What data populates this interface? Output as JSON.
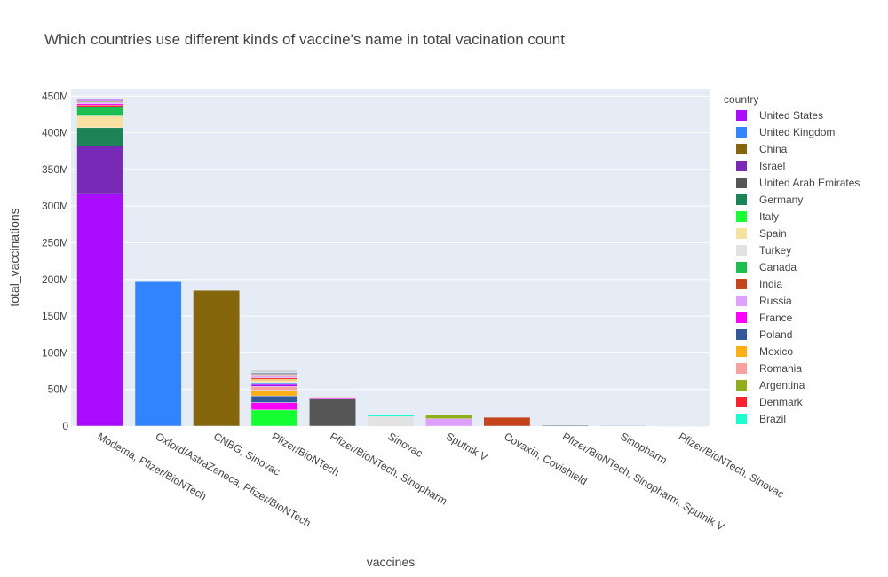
{
  "chart_data": {
    "type": "bar",
    "barmode": "stack",
    "title": "Which countries use different kinds of vaccine's name in total vacination count",
    "xlabel": "vaccines",
    "ylabel": "total_vaccinations",
    "ylim": [
      0,
      460000000
    ],
    "yticks": [
      0,
      50000000,
      100000000,
      150000000,
      200000000,
      250000000,
      300000000,
      350000000,
      400000000,
      450000000
    ],
    "ytick_labels": [
      "0",
      "50M",
      "100M",
      "150M",
      "200M",
      "250M",
      "300M",
      "350M",
      "400M",
      "450M"
    ],
    "grid": true,
    "plot_background": "#E5ECF6",
    "legend_title": "country",
    "legend_position": "right",
    "categories": [
      "Moderna, Pfizer/BioNTech",
      "Oxford/AstraZeneca, Pfizer/BioNTech",
      "CNBG, Sinovac",
      "Pfizer/BioNTech",
      "Pfizer/BioNTech, Sinopharm",
      "Sinovac",
      "Sputnik V",
      "Covaxin, Covishield",
      "Pfizer/BioNTech, Sinopharm, Sputnik V",
      "Sinopharm",
      "Pfizer/BioNTech, Sinovac"
    ],
    "series": [
      {
        "name": "United States",
        "color": "#AA0DFE",
        "values": [
          317000000,
          0,
          0,
          0,
          0,
          0,
          0,
          0,
          0,
          0,
          0
        ]
      },
      {
        "name": "United Kingdom",
        "color": "#3283FE",
        "values": [
          0,
          197000000,
          0,
          0,
          0,
          0,
          0,
          0,
          0,
          0,
          0
        ]
      },
      {
        "name": "China",
        "color": "#85660D",
        "values": [
          0,
          0,
          185000000,
          0,
          0,
          0,
          0,
          0,
          0,
          0,
          0
        ]
      },
      {
        "name": "Israel",
        "color": "#782AB6",
        "values": [
          65000000,
          0,
          0,
          0,
          0,
          0,
          0,
          0,
          0,
          0,
          0
        ]
      },
      {
        "name": "United Arab Emirates",
        "color": "#565656",
        "values": [
          0,
          0,
          0,
          0,
          37000000,
          0,
          0,
          0,
          0,
          0,
          0
        ]
      },
      {
        "name": "Germany",
        "color": "#1C8356",
        "values": [
          25000000,
          0,
          0,
          0,
          0,
          0,
          0,
          0,
          0,
          0,
          0
        ]
      },
      {
        "name": "Italy",
        "color": "#16FF32",
        "values": [
          0,
          0,
          0,
          22000000,
          0,
          0,
          0,
          0,
          0,
          0,
          0
        ]
      },
      {
        "name": "Spain",
        "color": "#F7E1A0",
        "values": [
          16000000,
          0,
          0,
          0,
          0,
          0,
          0,
          0,
          0,
          0,
          0
        ]
      },
      {
        "name": "Turkey",
        "color": "#E2E2E2",
        "values": [
          0,
          0,
          0,
          0,
          0,
          13000000,
          0,
          0,
          0,
          0,
          0
        ]
      },
      {
        "name": "Canada",
        "color": "#1CBE4F",
        "values": [
          12000000,
          0,
          0,
          0,
          0,
          0,
          0,
          0,
          0,
          0,
          0
        ]
      },
      {
        "name": "India",
        "color": "#C4451C",
        "values": [
          0,
          0,
          0,
          0,
          0,
          0,
          0,
          12000000,
          0,
          0,
          0
        ]
      },
      {
        "name": "Russia",
        "color": "#DEA0FD",
        "values": [
          0,
          0,
          0,
          0,
          0,
          0,
          10000000,
          0,
          0,
          0,
          0
        ]
      },
      {
        "name": "France",
        "color": "#FE00FA",
        "values": [
          0,
          0,
          0,
          10000000,
          0,
          0,
          0,
          0,
          0,
          0,
          0
        ]
      },
      {
        "name": "Poland",
        "color": "#325A9B",
        "values": [
          0,
          0,
          0,
          9000000,
          0,
          0,
          0,
          0,
          0,
          0,
          0
        ]
      },
      {
        "name": "Mexico",
        "color": "#FEAF16",
        "values": [
          0,
          0,
          0,
          8000000,
          0,
          0,
          0,
          0,
          0,
          0,
          0
        ]
      },
      {
        "name": "Romania",
        "color": "#F8A19F",
        "values": [
          0,
          0,
          0,
          5000000,
          0,
          0,
          0,
          0,
          0,
          0,
          0
        ]
      },
      {
        "name": "Argentina",
        "color": "#90AD1C",
        "values": [
          0,
          0,
          0,
          0,
          0,
          0,
          5000000,
          0,
          0,
          0,
          0
        ]
      },
      {
        "name": "Denmark",
        "color": "#F6222E",
        "values": [
          3000000,
          0,
          0,
          0,
          0,
          0,
          0,
          0,
          0,
          0,
          0
        ]
      },
      {
        "name": "Brazil",
        "color": "#1CFFCE",
        "values": [
          0,
          0,
          0,
          0,
          0,
          3000000,
          0,
          0,
          0,
          0,
          0
        ]
      }
    ],
    "additional_unlabeled_segments": [
      {
        "category": "Moderna, Pfizer/BioNTech",
        "values": [
          2000000,
          2000000,
          1500000,
          1500000
        ],
        "colors": [
          "#FE00FA",
          "#DEA0FD",
          "#90AD1C",
          "#AA0DFE"
        ]
      },
      {
        "category": "Pfizer/BioNTech",
        "values": [
          3000000,
          2500000,
          2500000,
          2000000,
          2000000,
          2000000,
          1500000,
          1500000,
          1500000,
          1500000,
          2000000
        ],
        "colors": [
          "#AA0DFE",
          "#3283FE",
          "#F7E1A0",
          "#FEAF16",
          "#F6222E",
          "#DEA0FD",
          "#F8A19F",
          "#85660D",
          "#325A9B",
          "#E2E2E2",
          "#C0C0C0"
        ]
      },
      {
        "category": "Pfizer/BioNTech, Sinopharm",
        "values": [
          1500000,
          1000000
        ],
        "colors": [
          "#FE00FA",
          "#F8A19F"
        ]
      },
      {
        "category": "Sputnik V",
        "values": [
          500000
        ],
        "colors": [
          "#DEA0FD"
        ]
      },
      {
        "category": "Pfizer/BioNTech, Sinopharm, Sputnik V",
        "values": [
          1300000,
          500000
        ],
        "colors": [
          "#565656",
          "#90AD1C"
        ]
      },
      {
        "category": "Sinopharm",
        "values": [
          700000
        ],
        "colors": [
          "#565656"
        ]
      },
      {
        "category": "Pfizer/BioNTech, Sinovac",
        "values": [
          500000
        ],
        "colors": [
          "#1CFFCE"
        ]
      }
    ]
  }
}
